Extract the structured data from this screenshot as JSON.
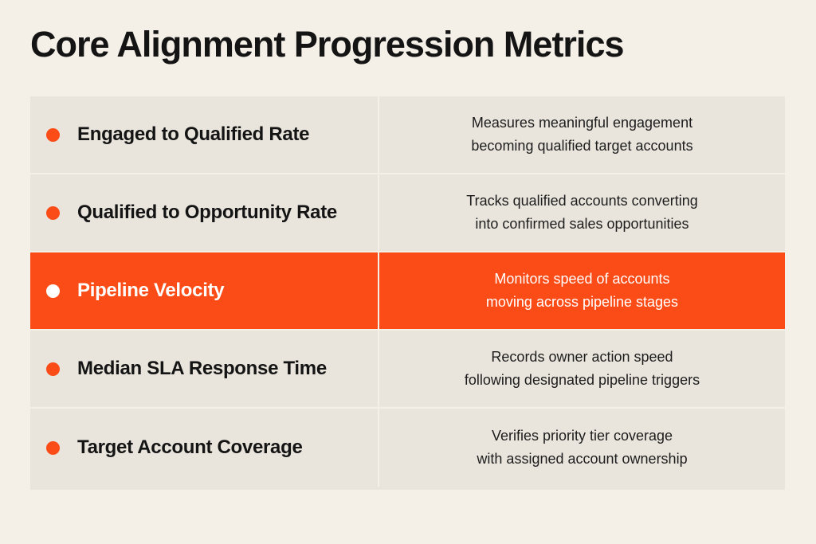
{
  "title": "Core Alignment Progression Metrics",
  "colors": {
    "accent": "#fb4b16",
    "background": "#f4f0e8",
    "row_background": "#e9e5dd"
  },
  "rows": [
    {
      "metric": "Engaged to Qualified Rate",
      "desc_line1": "Measures meaningful engagement",
      "desc_line2": "becoming qualified target accounts",
      "highlighted": false
    },
    {
      "metric": "Qualified to Opportunity Rate",
      "desc_line1": "Tracks qualified accounts converting",
      "desc_line2": "into confirmed sales opportunities",
      "highlighted": false
    },
    {
      "metric": "Pipeline Velocity",
      "desc_line1": "Monitors speed of accounts",
      "desc_line2": "moving across pipeline stages",
      "highlighted": true
    },
    {
      "metric": "Median SLA Response Time",
      "desc_line1": "Records owner action speed",
      "desc_line2": "following designated pipeline triggers",
      "highlighted": false
    },
    {
      "metric": "Target Account Coverage",
      "desc_line1": "Verifies priority tier coverage",
      "desc_line2": "with assigned account ownership",
      "highlighted": false
    }
  ]
}
